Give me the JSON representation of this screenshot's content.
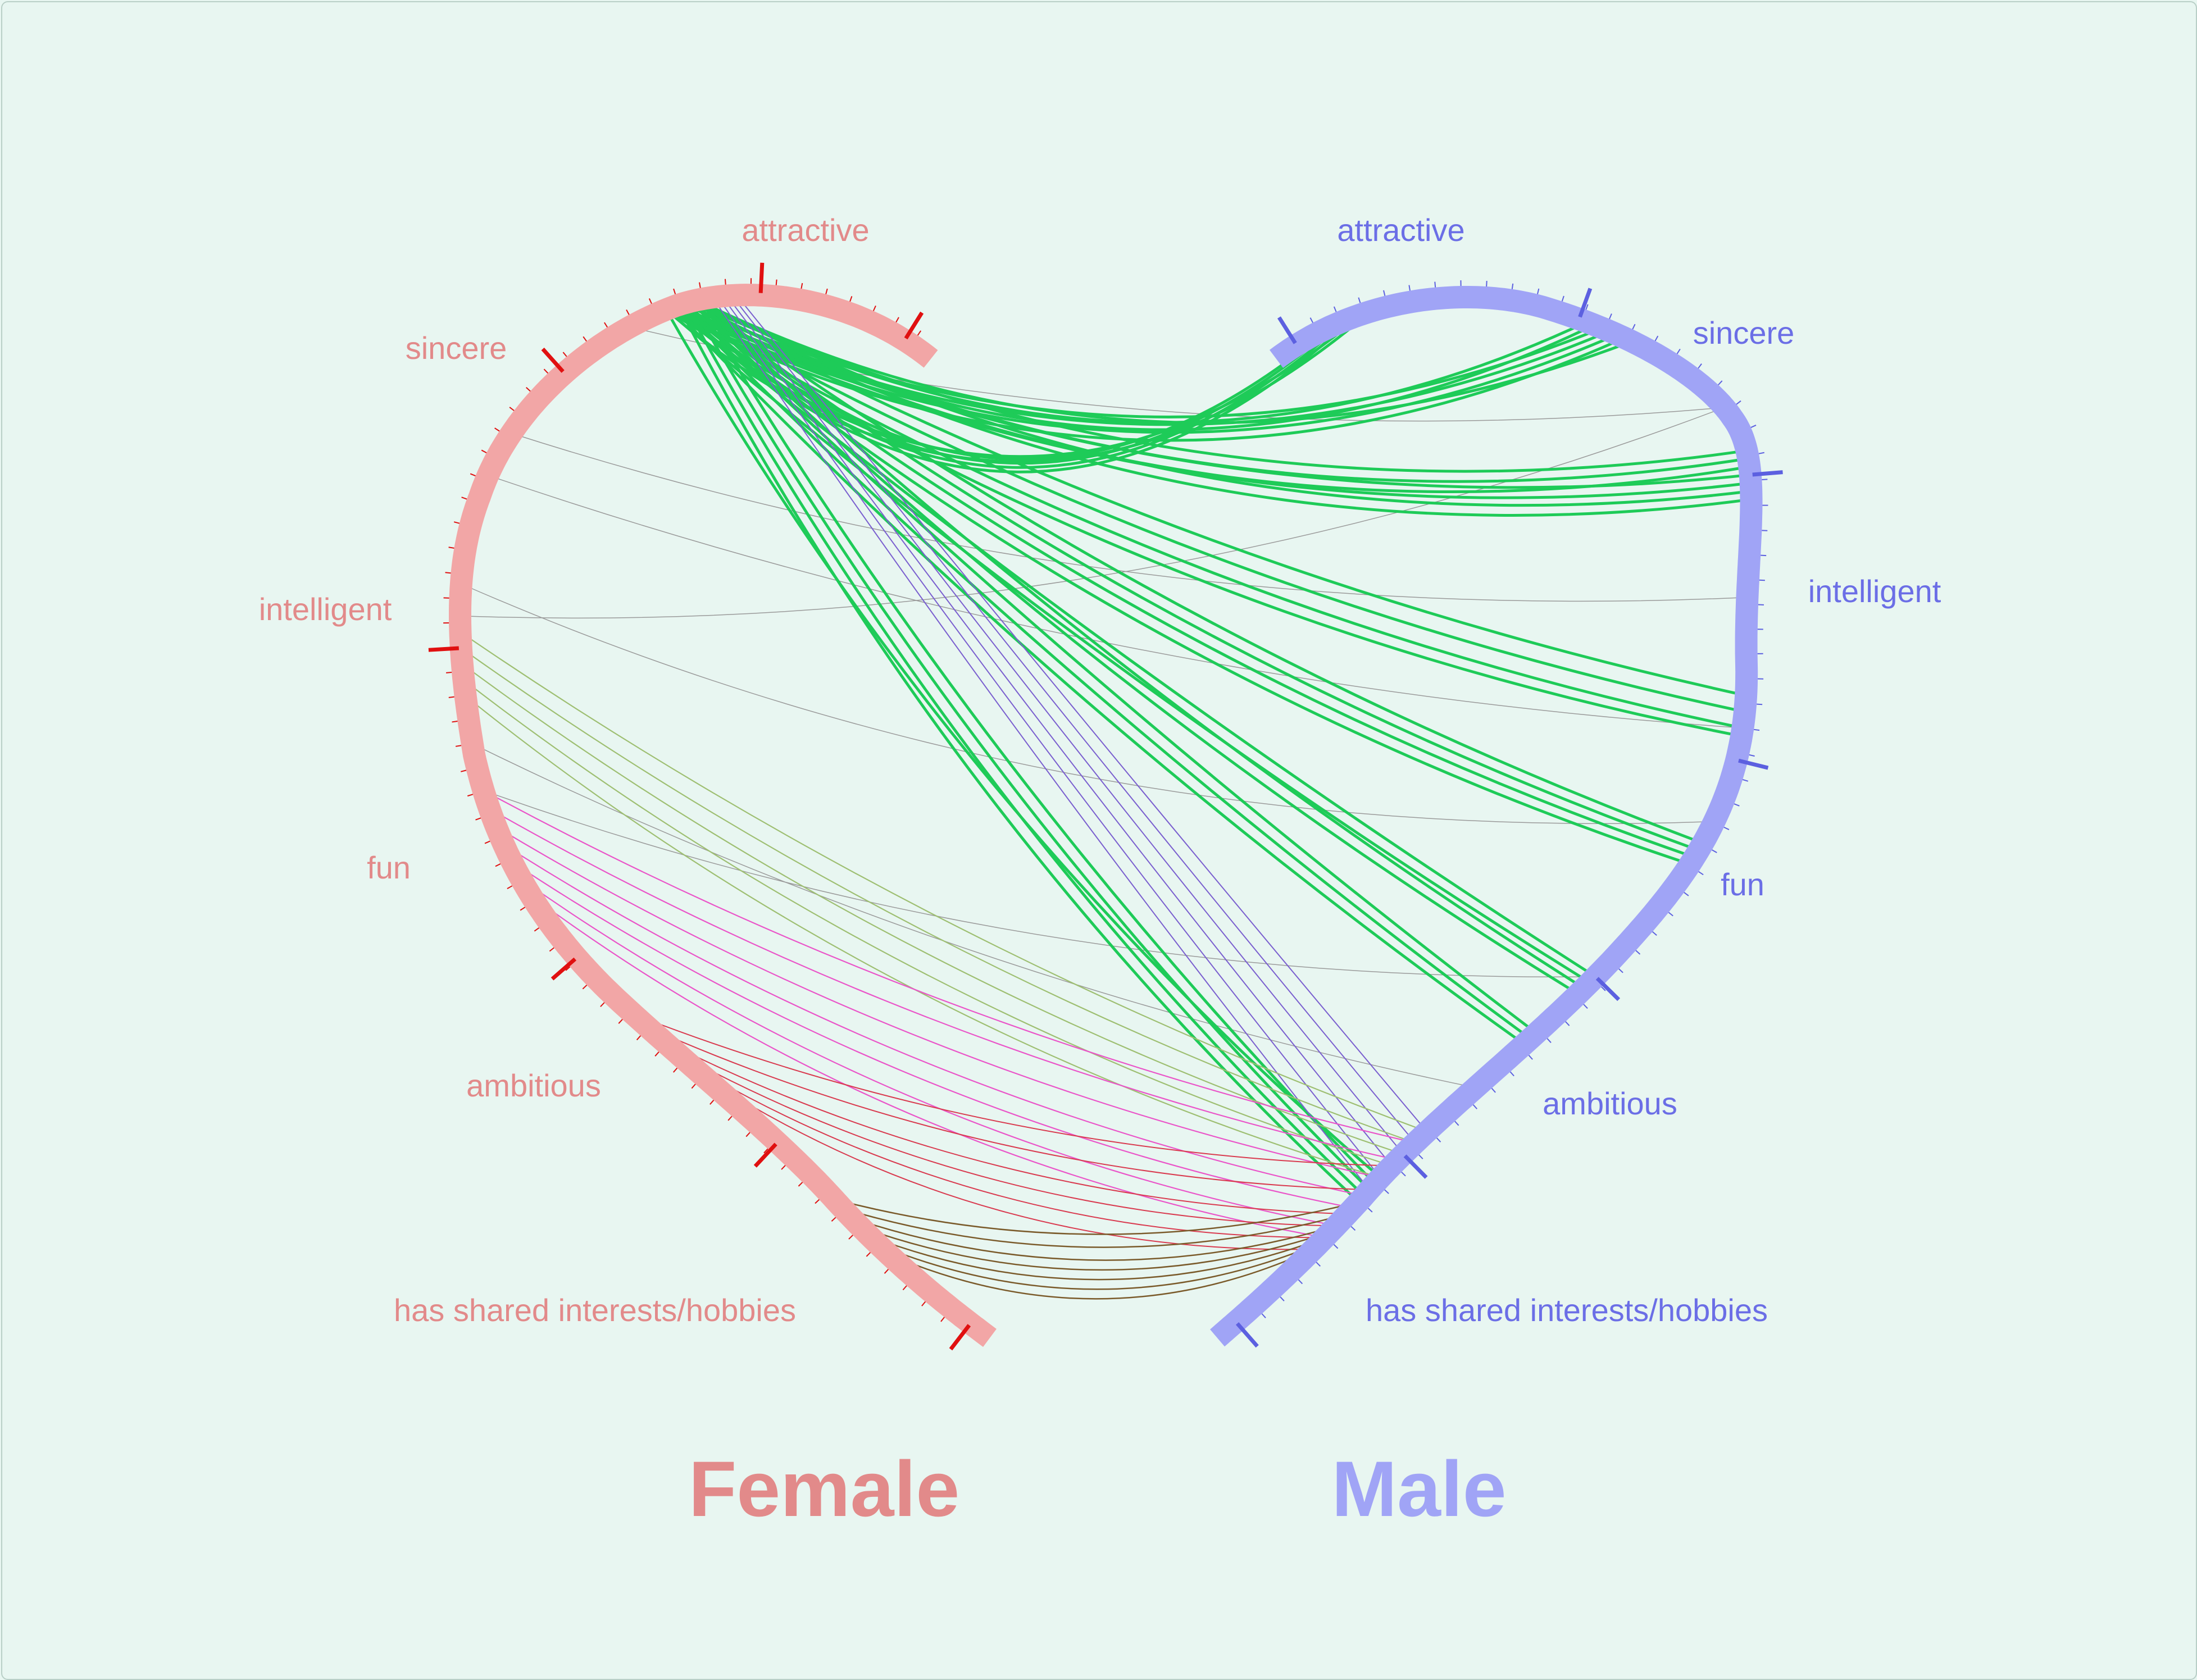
{
  "sides": {
    "female": {
      "title": "Female",
      "arc_color": "#f2a6a6",
      "label_color": "#e28a8a",
      "major_tick_color": "#e01010",
      "labels": [
        "attractive",
        "sincere",
        "intelligent",
        "fun",
        "ambitious",
        "has shared interests/hobbies"
      ]
    },
    "male": {
      "title": "Male",
      "arc_color": "#a0a4f6",
      "label_color": "#6b6ee6",
      "major_tick_color": "#5c60e0",
      "labels": [
        "attractive",
        "sincere",
        "intelligent",
        "fun",
        "ambitious",
        "has shared interests/hobbies"
      ]
    }
  },
  "link_colors": {
    "attractive": "#1ecb58",
    "sincere": "#7a5fcf",
    "intelligent": "#9ebf72",
    "fun": "#ea55c9",
    "ambitious": "#d93a4f",
    "has shared interests/hobbies": "#7a5a2a",
    "minor": "#9a9a9a"
  }
}
